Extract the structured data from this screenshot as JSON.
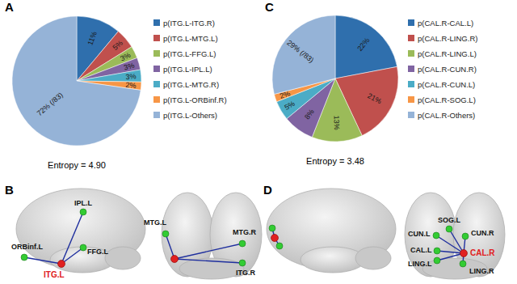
{
  "chart_data": [
    {
      "type": "pie",
      "title": "A",
      "subtitle": "Entropy = 4.90",
      "categories": [
        "p(ITG.L-ITG.R)",
        "p(ITG.L-MTG.L)",
        "p(ITG.L-FFG.L)",
        "p(ITG.L-IPL.L)",
        "p(ITG.L-MTG.R)",
        "p(ITG.L-ORBinf.R)",
        "p(ITG.L-Others)"
      ],
      "values": [
        11,
        5,
        3,
        3,
        3,
        2,
        72
      ],
      "value_labels": [
        "11%",
        "5%",
        "3%",
        "3%",
        "3%",
        "2%",
        "72% (/83)"
      ],
      "colors": [
        "#2f6fad",
        "#c0504d",
        "#9bbb59",
        "#8064a2",
        "#4bacc6",
        "#f79646",
        "#95b3d7"
      ],
      "data_labels": true,
      "legend": "right"
    },
    {
      "type": "pie",
      "title": "C",
      "subtitle": "Entropy = 3.48",
      "categories": [
        "p(CAL.R-CAL.L)",
        "p(CAL.R-LING.R)",
        "p(CAL.R-LING.L)",
        "p(CAL.R-CUN.R)",
        "p(CAL.R-CUN.L)",
        "p(CAL.R-SOG.L)",
        "p(CAL.R-Others)"
      ],
      "values": [
        22,
        21,
        13,
        8,
        5,
        2,
        29
      ],
      "value_labels": [
        "22%",
        "21%",
        "13%",
        "8%",
        "5%",
        "2%",
        "29% (/83)"
      ],
      "colors": [
        "#2f6fad",
        "#c0504d",
        "#9bbb59",
        "#8064a2",
        "#4bacc6",
        "#f79646",
        "#95b3d7"
      ],
      "data_labels": true,
      "legend": "right"
    }
  ],
  "networks": [
    {
      "title": "B",
      "lateral": [
        "ITG.L",
        "IPL.L",
        "FFG.L",
        "ORBinf.L"
      ],
      "posterior": [
        "MTG.L",
        "MTG.R",
        "ITG.R"
      ]
    },
    {
      "title": "D",
      "posterior": [
        "CAL.R",
        "CUN.L",
        "SOG.L",
        "CUN.R",
        "CAL.L",
        "LING.L",
        "LING.R"
      ]
    }
  ]
}
